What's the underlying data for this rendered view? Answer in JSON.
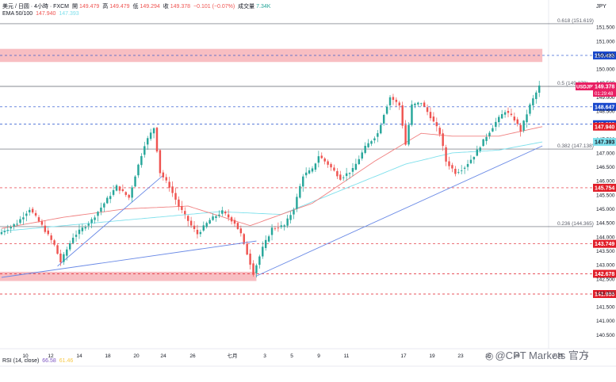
{
  "header": {
    "symbol": "美元 / 日圆 · 4小時 · FXCM",
    "open_label": "開",
    "open": "149.479",
    "high_label": "高",
    "high": "149.479",
    "low_label": "低",
    "low": "149.294",
    "close_label": "收",
    "close": "149.378",
    "change": "−0.101 (−0.07%)",
    "volume_label": "成交量",
    "volume": "7.34K",
    "ema_label": "EMA 50/100",
    "ema50": "147.940",
    "ema100": "147.393",
    "currency": "JPY"
  },
  "colors": {
    "up": "#26a69a",
    "down": "#ef5350",
    "ema50": "#f08080",
    "ema100": "#7fe0ec",
    "trend": "#6a8ae6",
    "fib": "#5d606b",
    "zone": "#f6a8ae",
    "label_blue": "#1848cc",
    "label_red": "#e11d28",
    "usdjpy_tag": "#e91e63"
  },
  "chart_data": {
    "type": "candlestick",
    "y_axis": {
      "min": 140.0,
      "max": 151.9,
      "ticks": [
        "151.500",
        "151.000",
        "150.500",
        "150.000",
        "149.500",
        "149.000",
        "148.500",
        "148.000",
        "147.500",
        "147.000",
        "146.500",
        "146.000",
        "145.500",
        "145.000",
        "144.500",
        "144.000",
        "143.500",
        "143.000",
        "142.500",
        "142.000",
        "141.500",
        "141.000",
        "140.500"
      ]
    },
    "x_axis": {
      "ticks": [
        "10",
        "12",
        "14",
        "18",
        "20",
        "24",
        "26",
        "七月",
        "3",
        "5",
        "9",
        "11",
        "17",
        "19",
        "23",
        "25",
        "29",
        "八月",
        "5"
      ]
    },
    "anchors": [
      [
        0,
        144.1
      ],
      [
        6,
        144.5
      ],
      [
        10,
        145.0
      ],
      [
        14,
        144.4
      ],
      [
        18,
        143.7
      ],
      [
        20,
        143.1
      ],
      [
        24,
        144.0
      ],
      [
        30,
        144.6
      ],
      [
        34,
        145.2
      ],
      [
        38,
        145.8
      ],
      [
        42,
        145.4
      ],
      [
        44,
        146.2
      ],
      [
        47,
        147.3
      ],
      [
        50,
        147.9
      ],
      [
        52,
        146.3
      ],
      [
        55,
        145.8
      ],
      [
        58,
        145.1
      ],
      [
        62,
        144.4
      ],
      [
        64,
        144.1
      ],
      [
        68,
        144.6
      ],
      [
        72,
        144.9
      ],
      [
        76,
        144.5
      ],
      [
        78,
        144.1
      ],
      [
        80,
        143.4
      ],
      [
        82,
        142.7
      ],
      [
        85,
        143.6
      ],
      [
        88,
        144.3
      ],
      [
        92,
        144.4
      ],
      [
        95,
        145.0
      ],
      [
        98,
        146.2
      ],
      [
        101,
        146.4
      ],
      [
        103,
        146.9
      ],
      [
        106,
        146.6
      ],
      [
        110,
        146.1
      ],
      [
        114,
        146.4
      ],
      [
        118,
        147.2
      ],
      [
        122,
        147.7
      ],
      [
        124,
        148.4
      ],
      [
        126,
        149.0
      ],
      [
        129,
        148.7
      ],
      [
        131,
        147.3
      ],
      [
        133,
        148.7
      ],
      [
        136,
        148.8
      ],
      [
        139,
        148.3
      ],
      [
        142,
        147.7
      ],
      [
        144,
        146.7
      ],
      [
        147,
        146.3
      ],
      [
        150,
        146.5
      ],
      [
        153,
        146.9
      ],
      [
        157,
        147.6
      ],
      [
        160,
        148.1
      ],
      [
        163,
        148.5
      ],
      [
        166,
        148.2
      ],
      [
        168,
        147.8
      ],
      [
        171,
        148.7
      ],
      [
        174,
        149.378
      ]
    ],
    "emas": {
      "ema50": [
        [
          0,
          144.3
        ],
        [
          20,
          144.7
        ],
        [
          40,
          145.0
        ],
        [
          60,
          145.1
        ],
        [
          80,
          144.4
        ],
        [
          100,
          145.2
        ],
        [
          120,
          146.7
        ],
        [
          135,
          147.7
        ],
        [
          145,
          147.6
        ],
        [
          160,
          147.6
        ],
        [
          174,
          147.94
        ]
      ],
      "ema100": [
        [
          0,
          144.2
        ],
        [
          40,
          144.6
        ],
        [
          70,
          144.9
        ],
        [
          90,
          144.8
        ],
        [
          110,
          145.7
        ],
        [
          130,
          146.6
        ],
        [
          145,
          147.0
        ],
        [
          160,
          147.1
        ],
        [
          174,
          147.393
        ]
      ]
    },
    "trendlines": [
      {
        "from": [
          0,
          142.55
        ],
        "to": [
          82,
          143.85
        ]
      },
      {
        "from": [
          82,
          142.6
        ],
        "to": [
          174,
          147.25
        ]
      },
      {
        "from": [
          18,
          142.95
        ],
        "to": [
          52,
          146.2
        ]
      }
    ],
    "levels": [
      {
        "name": "fib-0.618",
        "price": 151.619,
        "label": "0.618 (151.619)",
        "style": "solid-gray"
      },
      {
        "name": "fib-0.5",
        "price": 149.379,
        "label": "0.5 (149.379)",
        "style": "solid-gray"
      },
      {
        "name": "fib-0.382",
        "price": 147.138,
        "label": "0.382 (147.138)",
        "style": "solid-gray"
      },
      {
        "name": "fib-0.236",
        "price": 144.365,
        "label": "0.236 (144.365)",
        "style": "solid-gray"
      },
      {
        "name": "lvl-150485",
        "price": 150.485,
        "label": "150.485",
        "style": "dashed-blue"
      },
      {
        "name": "lvl-148647",
        "price": 148.647,
        "label": "148.647",
        "style": "dashed-blue"
      },
      {
        "name": "lvl-148026",
        "price": 148.026,
        "label": "148.026",
        "style": "dashed-blue"
      },
      {
        "name": "lvl-145754",
        "price": 145.754,
        "label": "145.754",
        "style": "dashed-red"
      },
      {
        "name": "lvl-143749",
        "price": 143.749,
        "label": "143.749",
        "style": "dashed-red"
      },
      {
        "name": "lvl-142678",
        "price": 142.678,
        "label": "142.678",
        "style": "dashed-red"
      },
      {
        "name": "lvl-141955",
        "price": 141.955,
        "label": "141.955",
        "style": "dashed-red"
      }
    ],
    "zones": [
      {
        "from": 150.25,
        "to": 150.72,
        "x_end": 174
      },
      {
        "from": 142.42,
        "to": 142.75,
        "x_end": 82
      }
    ],
    "price_tags": [
      {
        "price": 149.378,
        "label": "USDJPY",
        "value": "149.378",
        "extra": "01:29:48",
        "bg": "#e91e63"
      },
      {
        "price": 147.94,
        "label": "",
        "value": "147.940",
        "bg": "#e11d28"
      },
      {
        "price": 147.393,
        "label": "",
        "value": "147.393",
        "bg": "#7fe0ec",
        "fg": "#131722"
      }
    ]
  },
  "rsi": {
    "label": "RSI (14, close)",
    "v1": "66.58",
    "v2": "61.46"
  },
  "watermark": {
    "text": "@CPT Markets 官方",
    "icon": "camera-icon"
  }
}
